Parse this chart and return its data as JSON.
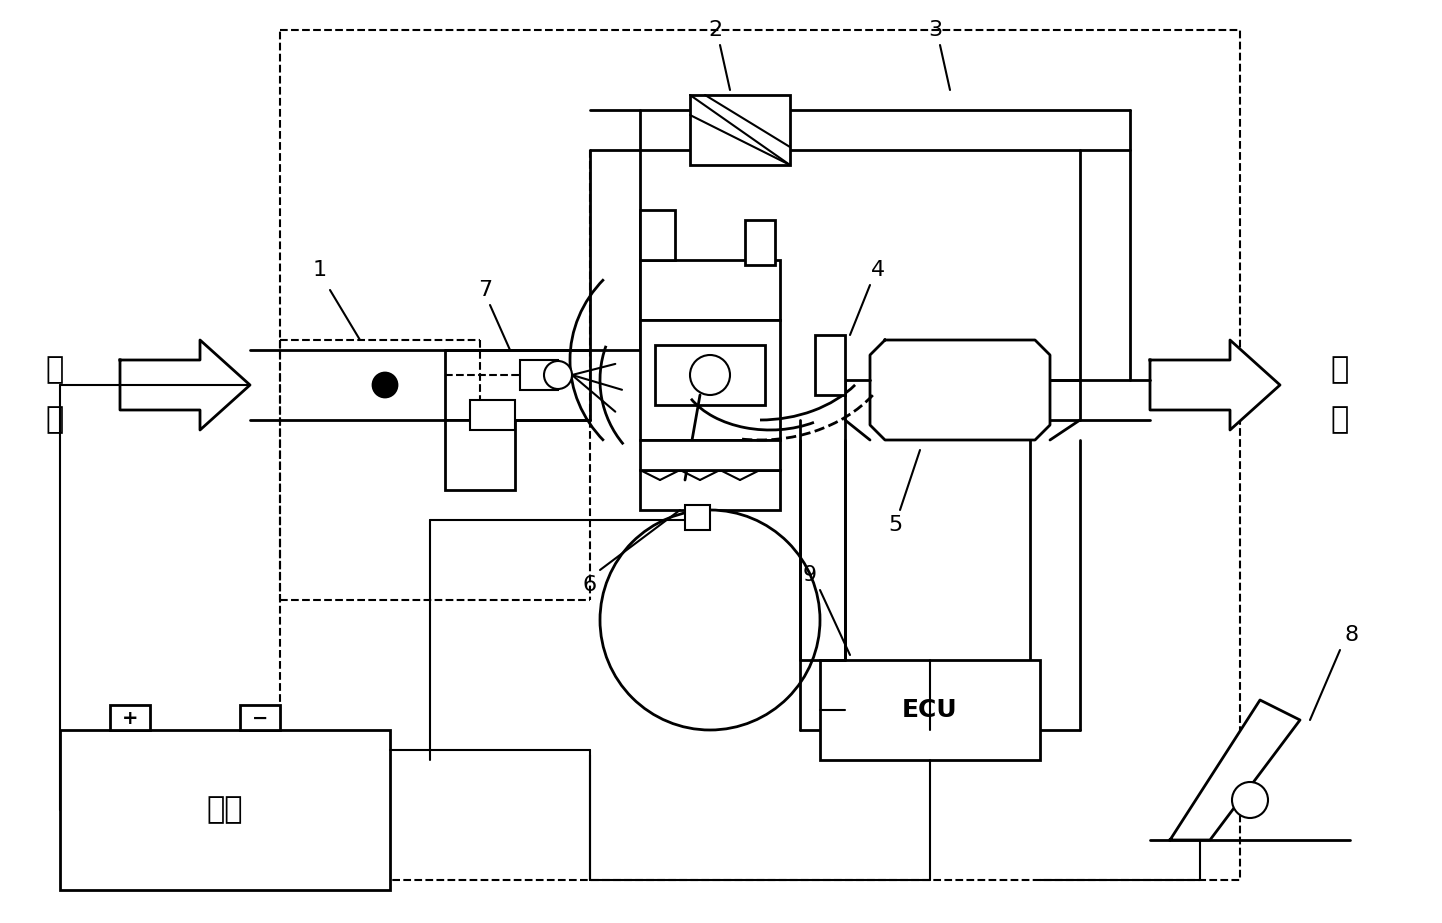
{
  "bg": "#ffffff",
  "lc": "black",
  "lw_main": 2.0,
  "lw_thin": 1.5,
  "lw_dash": 1.5,
  "fs_label": 16,
  "fs_cn": 22,
  "fs_ecu": 18,
  "labels": [
    "1",
    "2",
    "3",
    "4",
    "5",
    "6",
    "7",
    "8",
    "9"
  ],
  "text_air": "空\n气",
  "text_exhaust": "废\n气",
  "text_battery": "电池",
  "text_ecu": "ECU"
}
